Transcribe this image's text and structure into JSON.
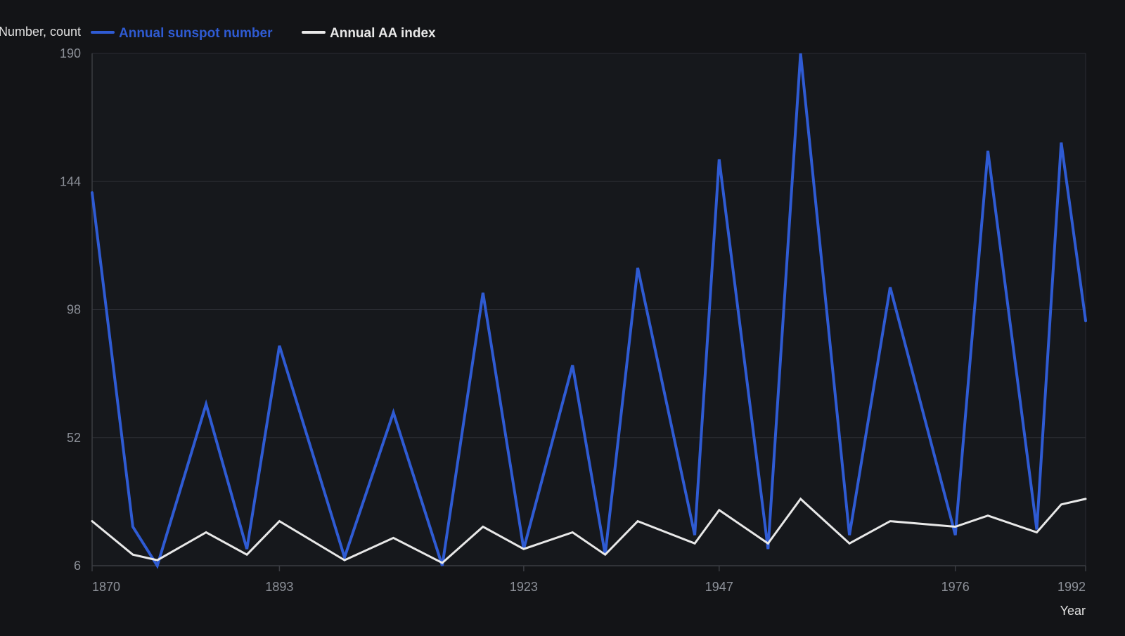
{
  "chart_data": {
    "type": "line",
    "ylabel": "Number, count",
    "xlabel": "Year",
    "ylim": [
      6,
      190
    ],
    "xlim": [
      1870,
      1992
    ],
    "y_ticks": [
      6,
      52,
      98,
      144,
      190
    ],
    "x_ticks": [
      1870,
      1893,
      1923,
      1947,
      1976,
      1992
    ],
    "grid": true,
    "legend_position": "top-left",
    "series": [
      {
        "name": "Annual sunspot number",
        "color": "#2f5bd3",
        "x": [
          1870,
          1875,
          1878,
          1884,
          1889,
          1893,
          1901,
          1907,
          1913,
          1918,
          1923,
          1929,
          1933,
          1937,
          1944,
          1947,
          1953,
          1957,
          1963,
          1968,
          1976,
          1980,
          1986,
          1989,
          1992
        ],
        "y": [
          140,
          20,
          6,
          64,
          12,
          85,
          9,
          61,
          6,
          104,
          12,
          78,
          10,
          113,
          17,
          152,
          12,
          190,
          17,
          106,
          17,
          155,
          19,
          158,
          94
        ]
      },
      {
        "name": "Annual AA index",
        "color": "#e8e8e8",
        "x": [
          1870,
          1875,
          1878,
          1884,
          1889,
          1893,
          1901,
          1907,
          1913,
          1918,
          1923,
          1929,
          1933,
          1937,
          1944,
          1947,
          1953,
          1957,
          1963,
          1968,
          1976,
          1980,
          1986,
          1989,
          1992
        ],
        "y": [
          22,
          10,
          8,
          18,
          10,
          22,
          8,
          16,
          7,
          20,
          12,
          18,
          10,
          22,
          14,
          26,
          14,
          30,
          14,
          22,
          20,
          24,
          18,
          28,
          30
        ]
      }
    ]
  },
  "theme": {
    "background": "#131417",
    "plot_background": "#16181c",
    "grid_color": "#2b2d33",
    "axis_color": "#3a3c42",
    "tick_label_color": "#8d9199",
    "label_color": "#e0e0e0"
  }
}
